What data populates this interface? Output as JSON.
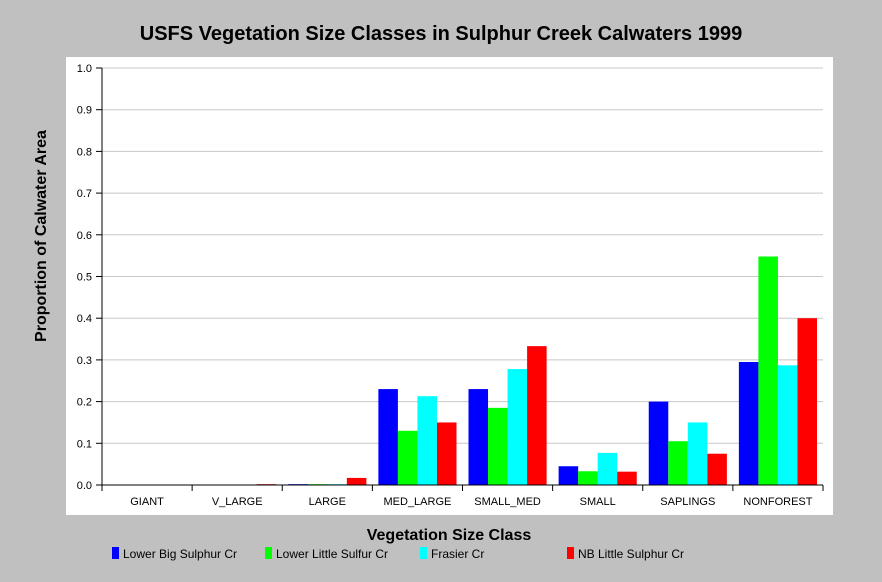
{
  "chart_data": {
    "type": "bar",
    "title": "USFS Vegetation Size Classes in Sulphur Creek Calwaters 1999",
    "xlabel": "Vegetation Size Class",
    "ylabel": "Proportion of Calwater Area",
    "ylim": [
      0,
      1.0
    ],
    "yticks": [
      "0.0",
      "0.1",
      "0.2",
      "0.3",
      "0.4",
      "0.5",
      "0.6",
      "0.7",
      "0.8",
      "0.9",
      "1.0"
    ],
    "grid": true,
    "legend_position": "bottom",
    "categories": [
      "GIANT",
      "V_LARGE",
      "LARGE",
      "MED_LARGE",
      "SMALL_MED",
      "SMALL",
      "SAPLINGS",
      "NONFOREST"
    ],
    "series": [
      {
        "name": "Lower Big Sulphur Cr",
        "color": "#0000ff",
        "values": [
          0.0,
          0.0,
          0.002,
          0.23,
          0.23,
          0.045,
          0.2,
          0.295
        ]
      },
      {
        "name": "Lower Little Sulfur Cr",
        "color": "#00ff00",
        "values": [
          0.0,
          0.0,
          0.002,
          0.13,
          0.185,
          0.033,
          0.105,
          0.548
        ]
      },
      {
        "name": "Frasier Cr",
        "color": "#00ffff",
        "values": [
          0.0,
          0.0,
          0.002,
          0.213,
          0.278,
          0.077,
          0.15,
          0.287
        ]
      },
      {
        "name": "NB Little Sulphur Cr",
        "color": "#ff0000",
        "values": [
          0.0,
          0.002,
          0.017,
          0.15,
          0.333,
          0.032,
          0.075,
          0.4
        ]
      }
    ]
  }
}
